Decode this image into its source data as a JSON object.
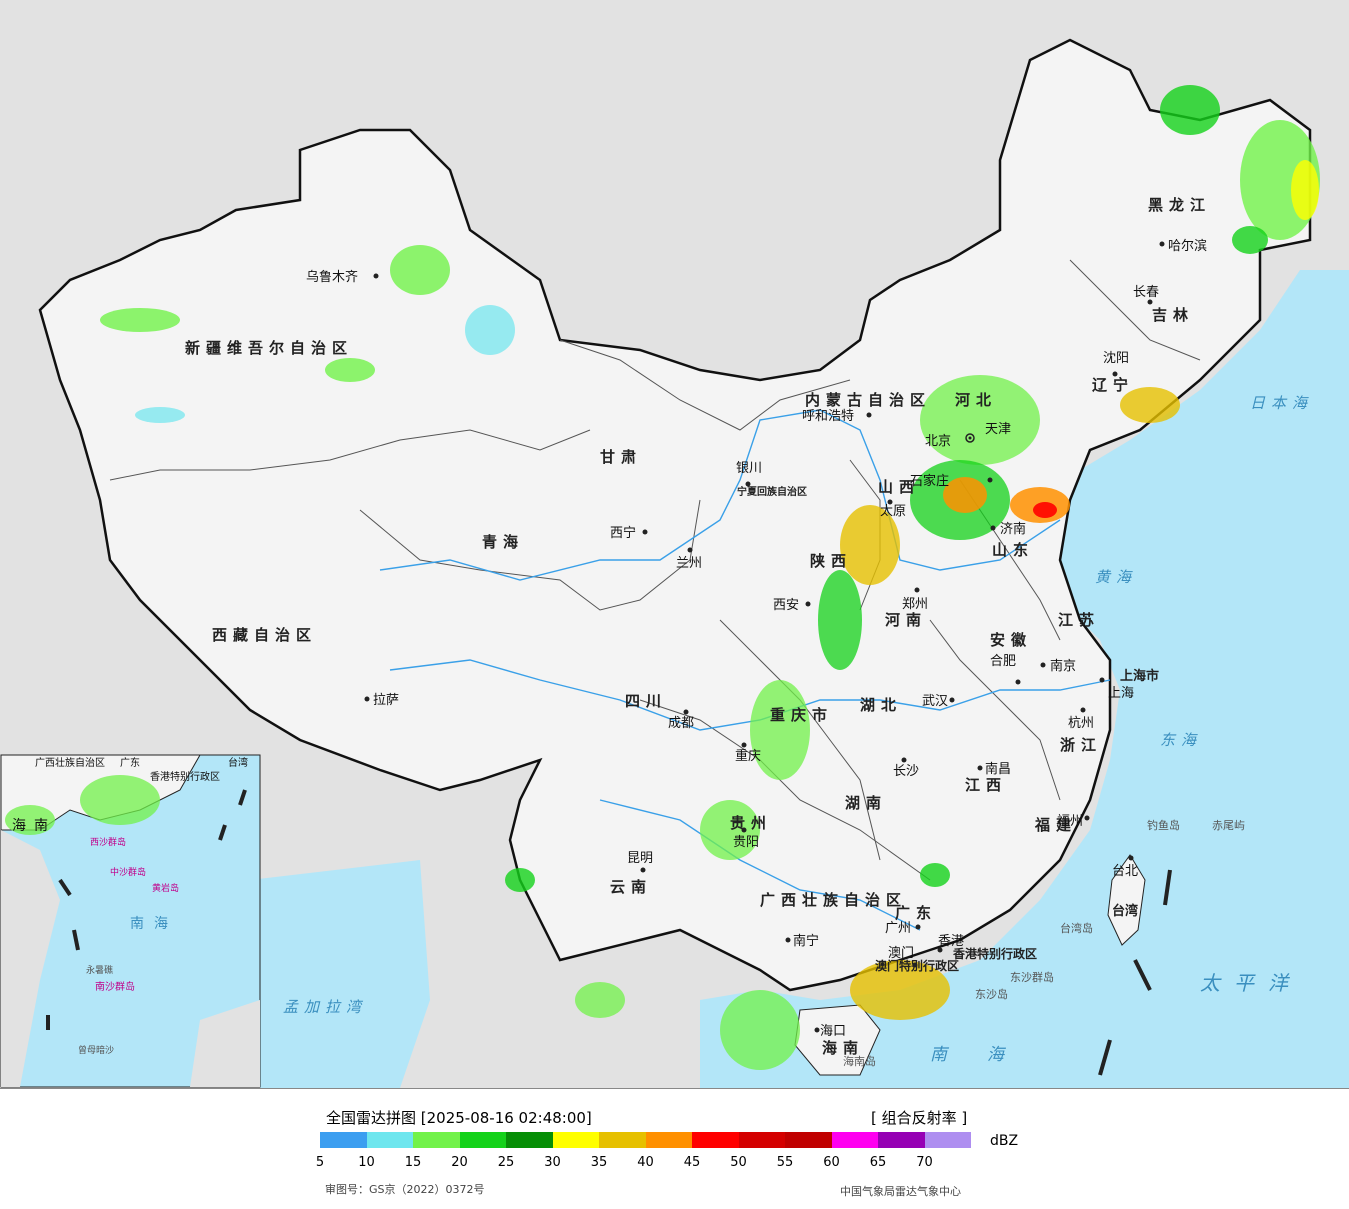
{
  "map": {
    "provinces": [
      "新疆维吾尔自治区",
      "西藏自治区",
      "青海",
      "甘肃",
      "内蒙古自治区",
      "黑龙江",
      "吉林",
      "辽宁",
      "河北",
      "山西",
      "陕西",
      "宁夏回族自治区",
      "四川",
      "重庆市",
      "云南",
      "贵州",
      "广西壮族自治区",
      "广东",
      "海南",
      "湖南",
      "湖北",
      "河南",
      "山东",
      "江苏",
      "安徽",
      "浙江",
      "江西",
      "福建",
      "台湾",
      "上海市",
      "香港特别行政区",
      "澳门特别行政区"
    ],
    "cities": [
      "乌鲁木齐",
      "拉萨",
      "西宁",
      "兰州",
      "银川",
      "呼和浩特",
      "北京",
      "天津",
      "石家庄",
      "太原",
      "济南",
      "西安",
      "郑州",
      "合肥",
      "南京",
      "上海",
      "杭州",
      "武汉",
      "成都",
      "重庆",
      "长沙",
      "南昌",
      "福州",
      "台北",
      "贵阳",
      "昆明",
      "南宁",
      "广州",
      "香港",
      "澳门",
      "海口",
      "沈阳",
      "长春",
      "哈尔滨"
    ],
    "seas": [
      "日本海",
      "黄海",
      "东海",
      "太平洋",
      "南海",
      "孟加拉湾"
    ],
    "islands": [
      "钓鱼岛",
      "赤尾屿",
      "台湾岛",
      "东沙群岛",
      "东沙岛",
      "海南岛",
      "中沙群岛",
      "黄岩岛",
      "南沙群岛",
      "曾母暗沙",
      "永暑礁",
      "西沙群岛"
    ],
    "colors": {
      "land": "#f4f4f4",
      "sea": "#b3e6f8",
      "foreign": "#e2e2e2",
      "border": "#111111",
      "river": "#3aa0e8"
    }
  },
  "legend": {
    "title": "全国雷达拼图 [2025-08-16 02:48:00]",
    "product": "[ 组合反射率 ]",
    "unit": "dBZ",
    "ticks": [
      "5",
      "10",
      "15",
      "20",
      "25",
      "30",
      "35",
      "40",
      "45",
      "50",
      "55",
      "60",
      "65",
      "70"
    ],
    "colors": [
      "#3c9ef0",
      "#6ee6ee",
      "#72f24a",
      "#14d21a",
      "#068e06",
      "#ffff00",
      "#e6c000",
      "#ff9000",
      "#ff0000",
      "#d40000",
      "#c00000",
      "#ff00f0",
      "#9600b4",
      "#ae8ef0"
    ],
    "approval": "审图号：GS京（2022）0372号",
    "source": "中国气象局雷达气象中心"
  }
}
